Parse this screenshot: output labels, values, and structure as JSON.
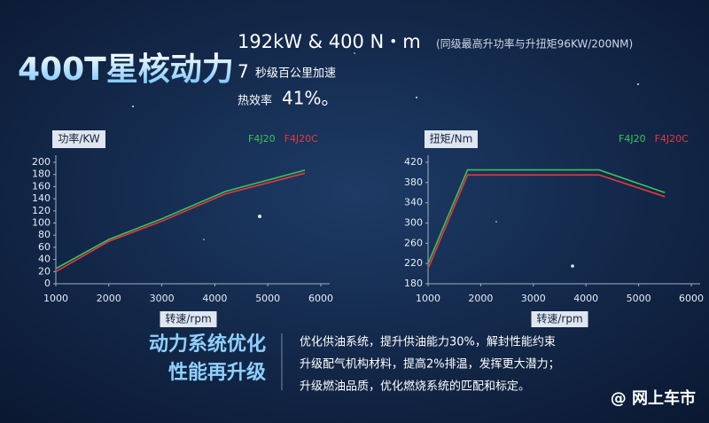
{
  "header": {
    "title": "400T星核动力",
    "spec": "192kW & 400 N・m",
    "spec_note": "(同级最高升功率与升扭矩96KW/200NM)",
    "accel_value": "7",
    "accel_label": "秒级百公里加速",
    "efficiency_label": "热效率",
    "efficiency_value": "41%。"
  },
  "chart_data": [
    {
      "type": "line",
      "ylabel": "功率/KW",
      "xlabel": "转速/rpm",
      "x": [
        1000,
        2000,
        3000,
        4200,
        5700
      ],
      "xlim": [
        1000,
        6000
      ],
      "xticks": [
        1000,
        2000,
        3000,
        4000,
        5000,
        6000
      ],
      "ylim": [
        0,
        200
      ],
      "yticks": [
        0,
        20,
        40,
        60,
        80,
        100,
        120,
        140,
        160,
        180,
        200
      ],
      "series": [
        {
          "name": "F4J20",
          "color": "#3ec15a",
          "values": [
            25,
            73,
            107,
            152,
            187
          ]
        },
        {
          "name": "F4J20C",
          "color": "#e8383d",
          "values": [
            20,
            70,
            103,
            148,
            182
          ]
        }
      ]
    },
    {
      "type": "line",
      "ylabel": "扭矩/Nm",
      "xlabel": "转速/rpm",
      "x": [
        1000,
        1750,
        4250,
        5500
      ],
      "xlim": [
        1000,
        6000
      ],
      "xticks": [
        1000,
        2000,
        3000,
        4000,
        5000,
        6000
      ],
      "ylim": [
        180,
        420
      ],
      "yticks": [
        180,
        220,
        260,
        300,
        340,
        380,
        420
      ],
      "series": [
        {
          "name": "F4J20",
          "color": "#3ec15a",
          "values": [
            220,
            405,
            405,
            360
          ]
        },
        {
          "name": "F4J20C",
          "color": "#e8383d",
          "values": [
            210,
            395,
            395,
            352
          ]
        }
      ]
    }
  ],
  "footer": {
    "headline": [
      "动力系统优化",
      "性能再升级"
    ],
    "body": [
      "优化供油系统，提升供油能力30%，解封性能约束",
      "升级配气机构材料，提高2%排温，发挥更大潜力；",
      "升级燃油品质，优化燃烧系统的匹配和标定。"
    ],
    "watermark": "@ 网上车市"
  }
}
